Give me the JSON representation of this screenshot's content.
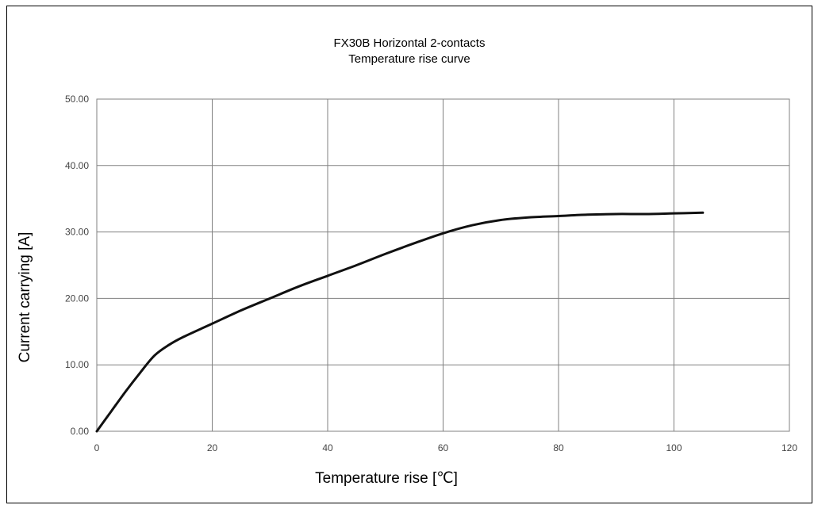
{
  "chart_data": {
    "type": "line",
    "title": [
      "FX30B Horizontal 2-contacts",
      "Temperature rise curve"
    ],
    "xlabel": "Temperature rise [℃]",
    "ylabel": "Current carrying [A]",
    "xlim": [
      0,
      120
    ],
    "ylim": [
      0,
      50
    ],
    "x_ticks": [
      0,
      20,
      40,
      60,
      80,
      100,
      120
    ],
    "x_tick_labels": [
      "0",
      "20",
      "40",
      "60",
      "80",
      "100",
      "120"
    ],
    "y_ticks": [
      0,
      10,
      20,
      30,
      40,
      50
    ],
    "y_tick_labels": [
      "0.00",
      "10.00",
      "20.00",
      "30.00",
      "40.00",
      "50.00"
    ],
    "grid": true,
    "legend": "none",
    "series": [
      {
        "color": "#111111",
        "x": [
          0,
          2.5,
          5,
          7.5,
          10,
          12.5,
          15,
          20,
          25,
          30,
          35,
          40,
          45,
          50,
          55,
          60,
          65,
          70,
          75,
          80,
          85,
          90,
          95,
          100,
          105
        ],
        "y": [
          0,
          3.0,
          6.0,
          8.8,
          11.4,
          13.0,
          14.2,
          16.2,
          18.2,
          20.0,
          21.8,
          23.4,
          25.0,
          26.7,
          28.3,
          29.8,
          31.0,
          31.8,
          32.2,
          32.4,
          32.6,
          32.7,
          32.7,
          32.8,
          32.9
        ]
      }
    ]
  }
}
